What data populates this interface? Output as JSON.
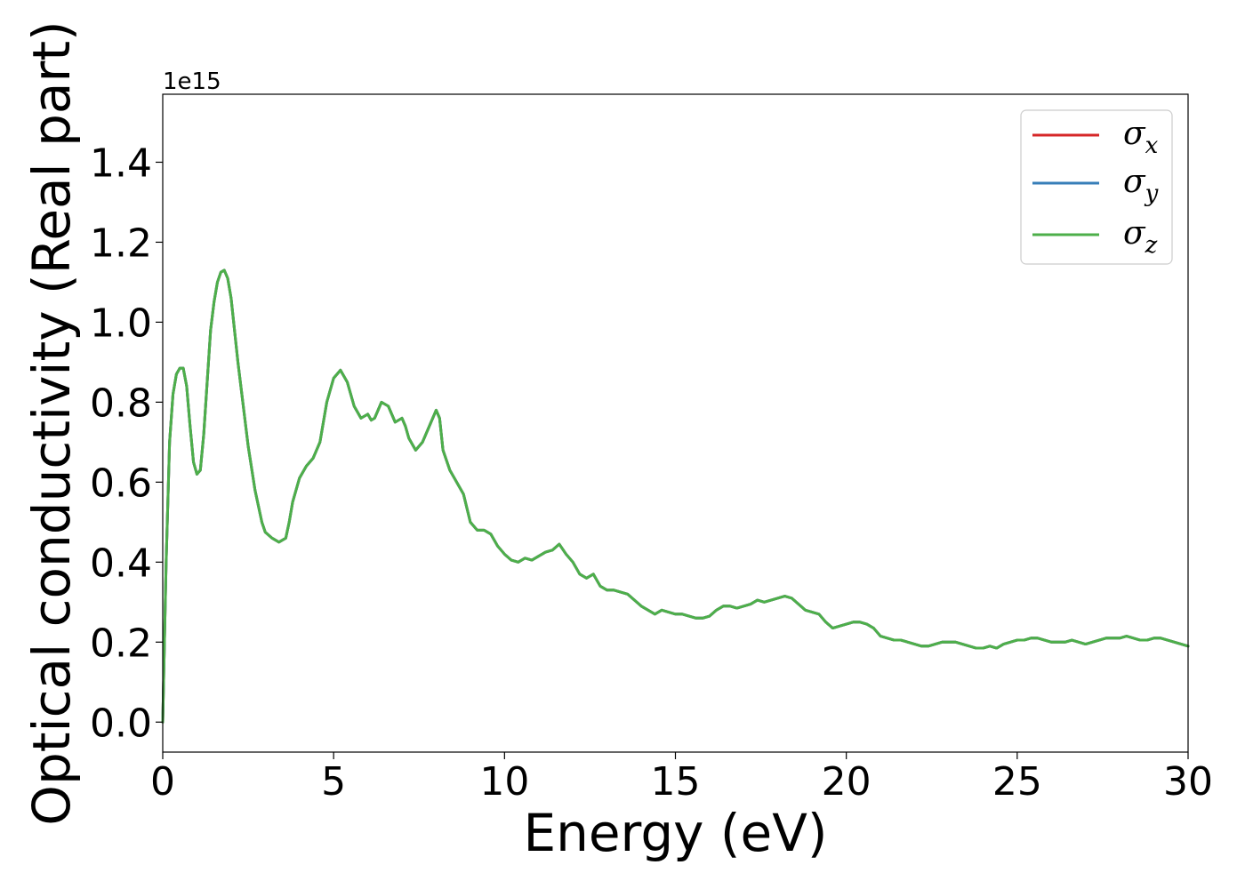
{
  "chart_data": {
    "type": "line",
    "xlabel": "Energy (eV)",
    "ylabel": "Optical conductivity (Real part)",
    "y_offset_label": "1e15",
    "xlim": [
      0,
      30
    ],
    "ylim": [
      -0.075,
      1.57
    ],
    "y_scale_factor": 1000000000000000.0,
    "xticks": [
      0,
      5,
      10,
      15,
      20,
      25,
      30
    ],
    "yticks": [
      0.0,
      0.2,
      0.4,
      0.6,
      0.8,
      1.0,
      1.2,
      1.4
    ],
    "xtick_labels": [
      "0",
      "5",
      "10",
      "15",
      "20",
      "25",
      "30"
    ],
    "ytick_labels": [
      "0.0",
      "0.2",
      "0.4",
      "0.6",
      "0.8",
      "1.0",
      "1.2",
      "1.4"
    ],
    "grid": false,
    "legend_position": "top-right",
    "x": [
      0,
      0.1,
      0.2,
      0.3,
      0.4,
      0.5,
      0.6,
      0.7,
      0.8,
      0.9,
      1.0,
      1.1,
      1.2,
      1.3,
      1.4,
      1.5,
      1.6,
      1.7,
      1.8,
      1.9,
      2.0,
      2.1,
      2.2,
      2.3,
      2.4,
      2.5,
      2.7,
      2.9,
      3.0,
      3.2,
      3.4,
      3.6,
      3.7,
      3.8,
      4.0,
      4.2,
      4.4,
      4.6,
      4.8,
      5.0,
      5.2,
      5.4,
      5.6,
      5.8,
      6.0,
      6.1,
      6.2,
      6.4,
      6.6,
      6.8,
      7.0,
      7.1,
      7.2,
      7.4,
      7.6,
      7.8,
      8.0,
      8.1,
      8.2,
      8.4,
      8.6,
      8.8,
      9.0,
      9.2,
      9.4,
      9.6,
      9.8,
      10.0,
      10.2,
      10.4,
      10.6,
      10.8,
      11.0,
      11.2,
      11.4,
      11.6,
      11.8,
      12.0,
      12.2,
      12.4,
      12.6,
      12.8,
      13.0,
      13.2,
      13.4,
      13.6,
      13.8,
      14.0,
      14.2,
      14.4,
      14.6,
      14.8,
      15.0,
      15.2,
      15.4,
      15.6,
      15.8,
      16.0,
      16.2,
      16.4,
      16.6,
      16.8,
      17.0,
      17.2,
      17.4,
      17.6,
      17.8,
      18.0,
      18.2,
      18.4,
      18.6,
      18.8,
      19.0,
      19.2,
      19.4,
      19.6,
      19.8,
      20.0,
      20.2,
      20.4,
      20.6,
      20.8,
      21.0,
      21.2,
      21.4,
      21.6,
      21.8,
      22.0,
      22.2,
      22.4,
      22.6,
      22.8,
      23.0,
      23.2,
      23.4,
      23.6,
      23.8,
      24.0,
      24.2,
      24.4,
      24.6,
      24.8,
      25.0,
      25.2,
      25.4,
      25.6,
      25.8,
      26.0,
      26.2,
      26.4,
      26.6,
      26.8,
      27.0,
      27.2,
      27.4,
      27.6,
      27.8,
      28.0,
      28.2,
      28.4,
      28.6,
      28.8,
      29.0,
      29.2,
      29.4,
      29.6,
      29.8,
      30.0
    ],
    "series": [
      {
        "name": "σx",
        "color": "#d62728",
        "values": null
      },
      {
        "name": "σy",
        "color": "#377eb8",
        "values": null
      },
      {
        "name": "σz",
        "color": "#4daf4a",
        "values": [
          0.0,
          0.4,
          0.7,
          0.82,
          0.87,
          0.885,
          0.885,
          0.84,
          0.74,
          0.65,
          0.62,
          0.63,
          0.72,
          0.85,
          0.98,
          1.05,
          1.1,
          1.125,
          1.13,
          1.11,
          1.06,
          0.98,
          0.9,
          0.83,
          0.76,
          0.69,
          0.58,
          0.5,
          0.475,
          0.46,
          0.45,
          0.46,
          0.5,
          0.55,
          0.61,
          0.64,
          0.66,
          0.7,
          0.8,
          0.86,
          0.88,
          0.85,
          0.79,
          0.76,
          0.77,
          0.755,
          0.76,
          0.8,
          0.79,
          0.75,
          0.76,
          0.74,
          0.71,
          0.68,
          0.7,
          0.74,
          0.78,
          0.76,
          0.68,
          0.63,
          0.6,
          0.57,
          0.5,
          0.48,
          0.48,
          0.47,
          0.44,
          0.42,
          0.405,
          0.4,
          0.41,
          0.405,
          0.415,
          0.425,
          0.43,
          0.445,
          0.42,
          0.4,
          0.37,
          0.36,
          0.37,
          0.34,
          0.33,
          0.33,
          0.325,
          0.32,
          0.305,
          0.29,
          0.28,
          0.27,
          0.28,
          0.275,
          0.27,
          0.27,
          0.265,
          0.26,
          0.26,
          0.265,
          0.28,
          0.29,
          0.29,
          0.285,
          0.29,
          0.295,
          0.305,
          0.3,
          0.305,
          0.31,
          0.315,
          0.31,
          0.295,
          0.28,
          0.275,
          0.27,
          0.25,
          0.235,
          0.24,
          0.245,
          0.25,
          0.25,
          0.245,
          0.235,
          0.215,
          0.21,
          0.205,
          0.205,
          0.2,
          0.195,
          0.19,
          0.19,
          0.195,
          0.2,
          0.2,
          0.2,
          0.195,
          0.19,
          0.185,
          0.185,
          0.19,
          0.185,
          0.195,
          0.2,
          0.205,
          0.205,
          0.21,
          0.21,
          0.205,
          0.2,
          0.2,
          0.2,
          0.205,
          0.2,
          0.195,
          0.2,
          0.205,
          0.21,
          0.21,
          0.21,
          0.215,
          0.21,
          0.205,
          0.205,
          0.21,
          0.21,
          0.205,
          0.2,
          0.195,
          0.19
        ]
      }
    ],
    "legend": [
      {
        "symbol": "σ",
        "sub": "x",
        "color": "#d62728"
      },
      {
        "symbol": "σ",
        "sub": "y",
        "color": "#377eb8"
      },
      {
        "symbol": "σ",
        "sub": "z",
        "color": "#4daf4a"
      }
    ]
  }
}
